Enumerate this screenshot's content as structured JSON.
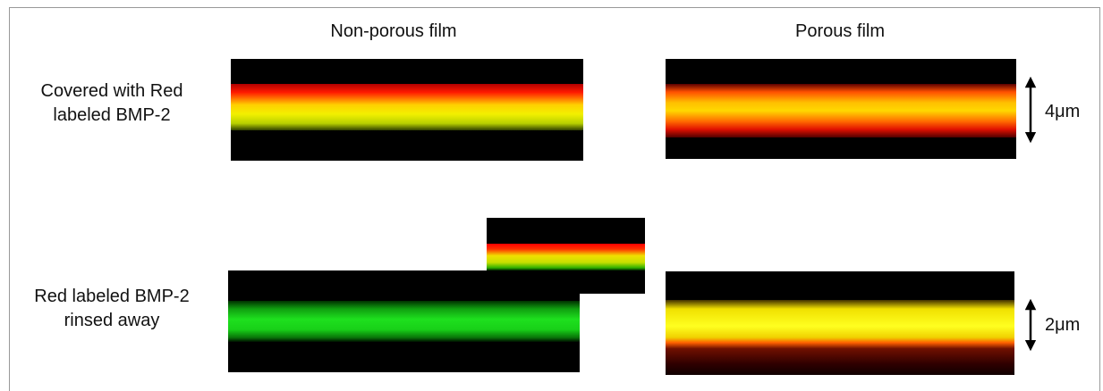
{
  "columns": [
    "Non-porous film",
    "Porous film"
  ],
  "rows": [
    {
      "label": [
        "Covered with Red",
        "labeled BMP-2"
      ],
      "scale_bar": "4μm"
    },
    {
      "label": [
        "Red labeled BMP-2",
        "rinsed away"
      ],
      "scale_bar": "2μm"
    }
  ]
}
